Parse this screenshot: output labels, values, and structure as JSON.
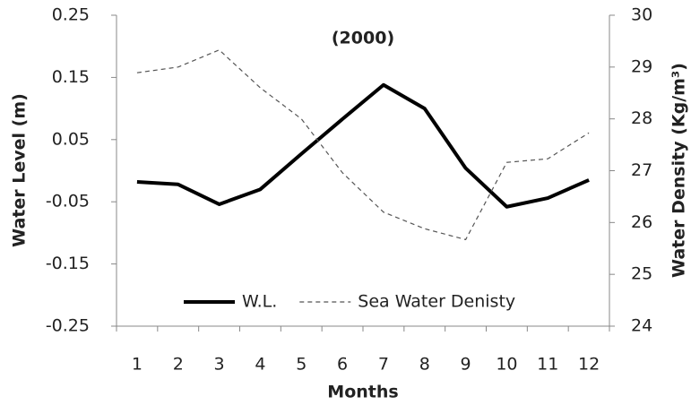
{
  "chart_data": {
    "type": "line",
    "title": "(2000)",
    "x_label": "Months",
    "y_label": "Water  Level (m)",
    "y2_label": "Water Density (Kg/m³)",
    "categories": [
      "1",
      "2",
      "3",
      "4",
      "5",
      "6",
      "7",
      "8",
      "9",
      "10",
      "11",
      "12"
    ],
    "series": [
      {
        "name": "W.L.",
        "color": "#000000",
        "values": [
          -0.018,
          -0.022,
          -0.054,
          -0.03,
          0.027,
          0.083,
          0.138,
          0.1,
          0.004,
          -0.058,
          -0.044,
          -0.015
        ]
      },
      {
        "name": "Sea Water Denisty",
        "color": "#555555",
        "axis": "y2",
        "values": [
          28.89,
          29.0,
          29.33,
          28.6,
          28.0,
          26.96,
          26.2,
          25.88,
          25.67,
          27.16,
          27.23,
          27.73
        ]
      }
    ],
    "ylim": [
      -0.25,
      0.25
    ],
    "yticks": [
      -0.25,
      -0.15,
      -0.05,
      0.05,
      0.15,
      0.25
    ],
    "y2lim": [
      24,
      30
    ],
    "y2ticks": [
      24,
      25,
      26,
      27,
      28,
      29,
      30
    ],
    "grid": false,
    "legend": "lower center"
  }
}
